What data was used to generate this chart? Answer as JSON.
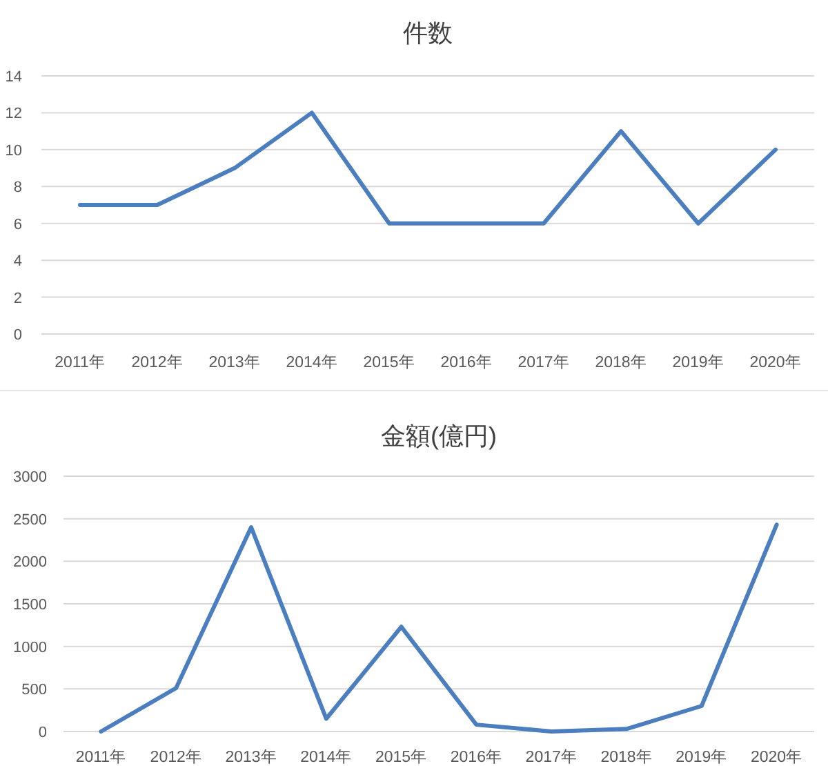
{
  "chart_data": [
    {
      "type": "line",
      "title": "件数",
      "categories": [
        "2011年",
        "2012年",
        "2013年",
        "2014年",
        "2015年",
        "2016年",
        "2017年",
        "2018年",
        "2019年",
        "2020年"
      ],
      "series": [
        {
          "color": "#4a7ebf",
          "values": [
            7,
            7,
            9,
            12,
            6,
            6,
            6,
            11,
            6,
            10
          ]
        }
      ],
      "ylim": [
        0,
        14
      ],
      "yticks": [
        0,
        2,
        4,
        6,
        8,
        10,
        12,
        14
      ],
      "grid": "y",
      "marker": "none",
      "line_style": "solid"
    },
    {
      "type": "line",
      "title": "金額(億円)",
      "categories": [
        "2011年",
        "2012年",
        "2013年",
        "2014年",
        "2015年",
        "2016年",
        "2017年",
        "2018年",
        "2019年",
        "2020年"
      ],
      "series": [
        {
          "color": "#4a7ebf",
          "values": [
            0,
            510,
            2400,
            150,
            1230,
            80,
            0,
            30,
            300,
            2430
          ]
        }
      ],
      "ylim": [
        0,
        3000
      ],
      "yticks": [
        0,
        500,
        1000,
        1500,
        2000,
        2500,
        3000
      ],
      "grid": "y",
      "marker": "none",
      "line_style": "solid"
    }
  ]
}
